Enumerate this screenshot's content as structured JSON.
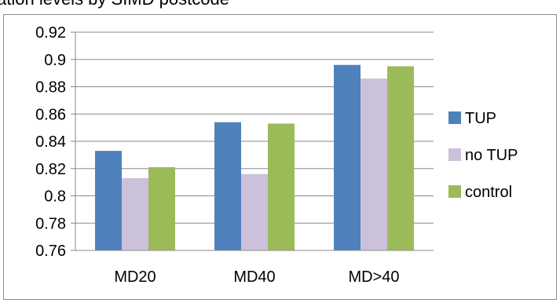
{
  "chart_data": {
    "type": "bar",
    "title": "ation levels by SIMD postcode",
    "categories": [
      "MD20",
      "MD40",
      "MD>40"
    ],
    "series": [
      {
        "name": "TUP",
        "color": "#4f81bd",
        "values": [
          0.833,
          0.854,
          0.896
        ]
      },
      {
        "name": "no TUP",
        "color": "#ccc1da",
        "values": [
          0.813,
          0.816,
          0.886
        ]
      },
      {
        "name": "control",
        "color": "#9bbb59",
        "values": [
          0.821,
          0.853,
          0.895
        ]
      }
    ],
    "ylim": [
      0.76,
      0.92
    ],
    "yticks": [
      "0.76",
      "0.78",
      "0.8",
      "0.82",
      "0.84",
      "0.86",
      "0.88",
      "0.9",
      "0.92"
    ],
    "grid": true,
    "legend_position": "right",
    "xlabel": "",
    "ylabel": ""
  }
}
